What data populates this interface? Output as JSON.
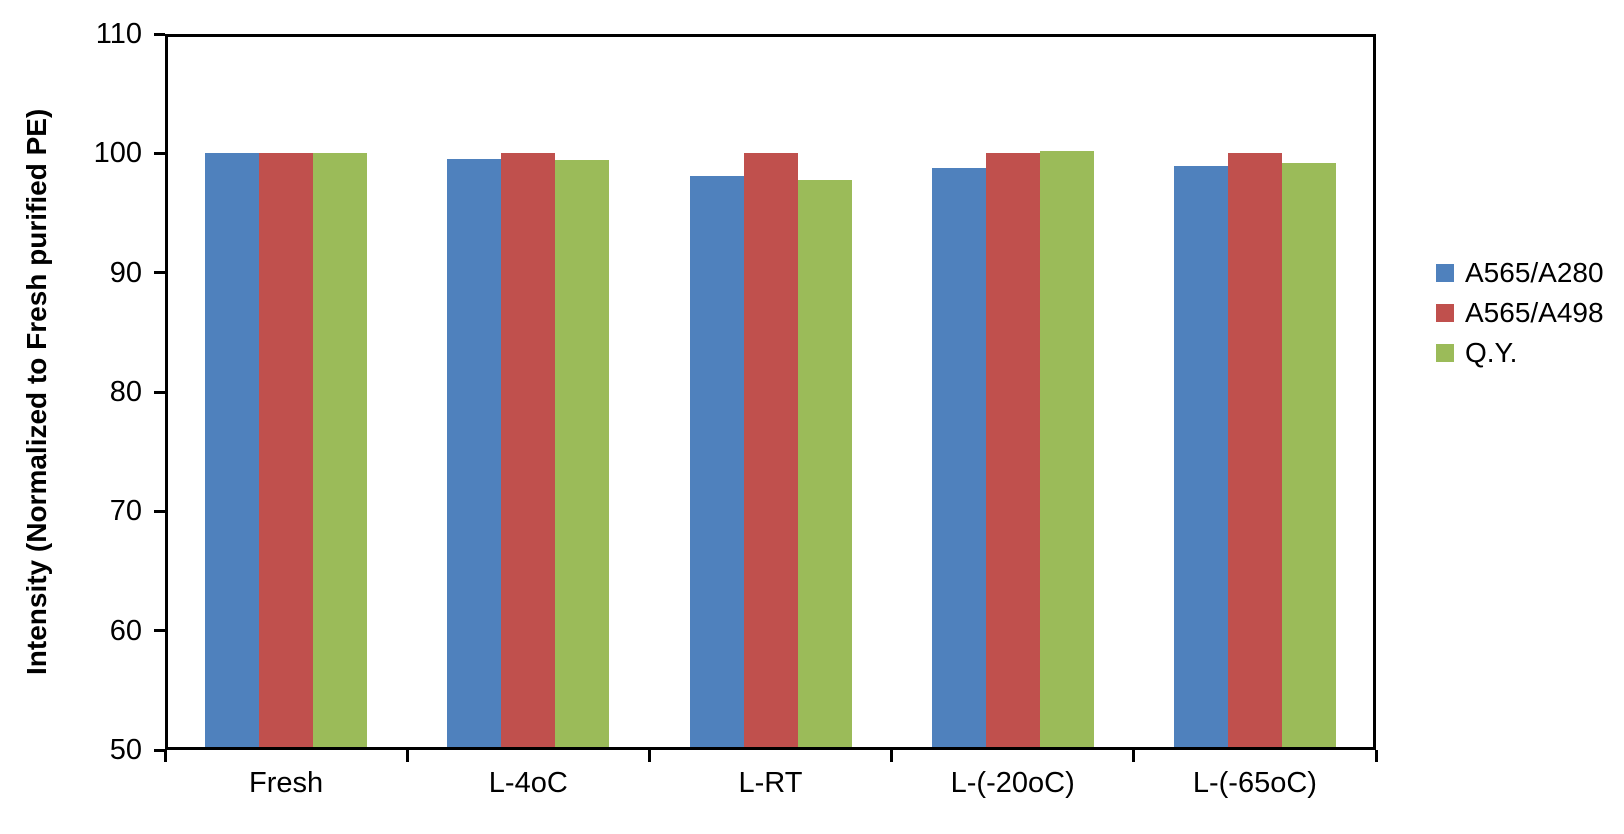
{
  "page": {
    "background_color": "#FFFFFF",
    "text_color": "#000000",
    "axis_color": "#000000"
  },
  "chart_data": {
    "type": "bar",
    "title": "",
    "xlabel": "",
    "ylabel": "Intensity (Normalized to Fresh purified PE)",
    "categories": [
      "Fresh",
      "L-4oC",
      "L-RT",
      "L-(-20oC)",
      "L-(-65oC)"
    ],
    "series": [
      {
        "name": "A565/A280",
        "color": "#4F81BD",
        "values": [
          100.0,
          99.5,
          98.1,
          98.8,
          98.9
        ]
      },
      {
        "name": "A565/A498",
        "color": "#C0504D",
        "values": [
          100.0,
          100.0,
          100.0,
          100.0,
          100.0
        ]
      },
      {
        "name": "Q.Y.",
        "color": "#9BBB59",
        "values": [
          100.0,
          99.4,
          97.8,
          100.2,
          99.2
        ]
      }
    ],
    "ylim": [
      50,
      110
    ],
    "yticks": [
      50,
      60,
      70,
      80,
      90,
      100,
      110
    ],
    "grid": false,
    "plot_frame": true,
    "legend_position": "right"
  }
}
